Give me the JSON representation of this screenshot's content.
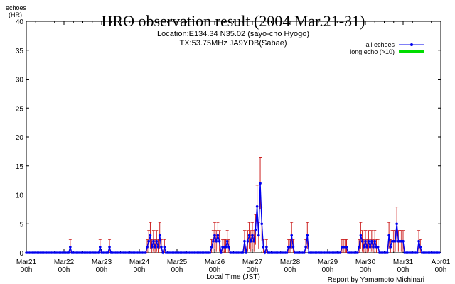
{
  "chart_data": {
    "type": "line",
    "title": "HRO observation result (2004 Mar.21-31)",
    "subtitle_line1": "Location:E134.34 N35.02 (sayo-cho Hyogo)",
    "subtitle_line2": "TX:53.75MHz JA9YDB(Sabae)",
    "ylabel_line1": "echoes",
    "ylabel_line2": "(HR)",
    "xlabel": "Local Time (JST)",
    "credit": "Report by Yamamoto Michinari",
    "ylim": [
      0,
      40
    ],
    "yticks": [
      "0",
      "5",
      "10",
      "15",
      "20",
      "25",
      "30",
      "35",
      "40"
    ],
    "xlim_hours": [
      0,
      264
    ],
    "xticks": [
      {
        "hour": 0,
        "line1": "Mar21",
        "line2": "00h"
      },
      {
        "hour": 24,
        "line1": "Mar22",
        "line2": "00h"
      },
      {
        "hour": 48,
        "line1": "Mar23",
        "line2": "00h"
      },
      {
        "hour": 72,
        "line1": "Mar24",
        "line2": "00h"
      },
      {
        "hour": 96,
        "line1": "Mar25",
        "line2": "00h"
      },
      {
        "hour": 120,
        "line1": "Mar26",
        "line2": "00h"
      },
      {
        "hour": 144,
        "line1": "Mar27",
        "line2": "00h"
      },
      {
        "hour": 168,
        "line1": "Mar28",
        "line2": "00h"
      },
      {
        "hour": 192,
        "line1": "Mar29",
        "line2": "00h"
      },
      {
        "hour": 216,
        "line1": "Mar30",
        "line2": "00h"
      },
      {
        "hour": 240,
        "line1": "Mar31",
        "line2": "00h"
      },
      {
        "hour": 264,
        "line1": "Apr01",
        "line2": "00h"
      }
    ],
    "legend": {
      "placement": "top-right",
      "entries": [
        {
          "label": "all echoes",
          "color": "#0000ee"
        },
        {
          "label": "long echo (>10)",
          "color": "#00dd00"
        }
      ]
    },
    "colors": {
      "series": "#0000ee",
      "error": "#cc2222",
      "long": "#00dd00"
    },
    "series": [
      {
        "name": "all echoes",
        "points": [
          [
            28,
            1
          ],
          [
            47,
            1
          ],
          [
            53,
            1
          ],
          [
            77,
            1
          ],
          [
            78,
            2
          ],
          [
            79,
            3
          ],
          [
            80,
            1
          ],
          [
            81,
            2
          ],
          [
            82,
            1
          ],
          [
            83,
            2
          ],
          [
            84,
            1
          ],
          [
            85,
            3
          ],
          [
            86,
            1
          ],
          [
            88,
            1
          ],
          [
            118,
            1
          ],
          [
            119,
            2
          ],
          [
            120,
            3
          ],
          [
            121,
            2
          ],
          [
            122,
            3
          ],
          [
            123,
            2
          ],
          [
            125,
            1
          ],
          [
            126,
            1
          ],
          [
            127,
            1
          ],
          [
            128,
            2
          ],
          [
            129,
            1
          ],
          [
            139,
            2
          ],
          [
            141,
            2
          ],
          [
            142,
            3
          ],
          [
            143,
            2
          ],
          [
            144,
            3
          ],
          [
            145,
            2
          ],
          [
            146,
            4
          ],
          [
            147,
            8
          ],
          [
            148,
            3
          ],
          [
            149,
            12
          ],
          [
            150,
            5
          ],
          [
            151,
            1
          ],
          [
            153,
            1
          ],
          [
            167,
            1
          ],
          [
            168,
            1
          ],
          [
            169,
            3
          ],
          [
            170,
            1
          ],
          [
            178,
            1
          ],
          [
            179,
            3
          ],
          [
            201,
            1
          ],
          [
            202,
            1
          ],
          [
            203,
            1
          ],
          [
            204,
            1
          ],
          [
            212,
            1
          ],
          [
            213,
            3
          ],
          [
            214,
            2
          ],
          [
            215,
            1
          ],
          [
            216,
            2
          ],
          [
            217,
            1
          ],
          [
            218,
            2
          ],
          [
            219,
            1
          ],
          [
            220,
            2
          ],
          [
            221,
            1
          ],
          [
            222,
            2
          ],
          [
            223,
            1
          ],
          [
            224,
            1
          ],
          [
            231,
            3
          ],
          [
            232,
            1
          ],
          [
            233,
            2
          ],
          [
            234,
            2
          ],
          [
            235,
            2
          ],
          [
            236,
            5
          ],
          [
            237,
            2
          ],
          [
            238,
            2
          ],
          [
            239,
            2
          ],
          [
            240,
            2
          ],
          [
            250,
            2
          ],
          [
            251,
            1
          ]
        ]
      }
    ]
  }
}
